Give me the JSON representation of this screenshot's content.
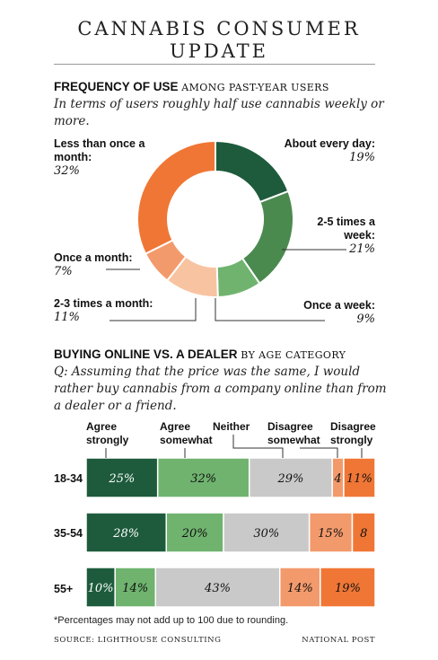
{
  "header": {
    "title_line1": "CANNABIS CONSUMER",
    "title_line2": "UPDATE"
  },
  "section1": {
    "title": "FREQUENCY OF USE",
    "subtitle": "AMONG PAST-YEAR USERS",
    "description": "In terms of users roughly half use cannabis weekly or more."
  },
  "section2": {
    "title": "BUYING ONLINE VS. A DEALER",
    "subtitle": "BY AGE CATEGORY",
    "question": "Q: Assuming that the price was the same, I would rather buy cannabis from a company online than from a dealer or a friend."
  },
  "footnote": "*Percentages may not add up to 100 due to rounding.",
  "source": "SOURCE: LIGHTHOUSE CONSULTING",
  "credit": "NATIONAL POST",
  "colors": {
    "dark_green": "#1d5b3c",
    "mid_green": "#4b8a4f",
    "light_green": "#6fb36f",
    "peach": "#f8c3a0",
    "light_orange": "#f39a6c",
    "orange": "#f07635",
    "grey": "#c9c9c9"
  },
  "chart_data": [
    {
      "type": "pie",
      "variant": "donut",
      "slices": [
        {
          "label": "About every day:",
          "value": 19,
          "value_label": "19%",
          "color": "#1d5b3c"
        },
        {
          "label": "2-5 times a week:",
          "value": 21,
          "value_label": "21%",
          "color": "#4b8a4f"
        },
        {
          "label": "Once a week:",
          "value": 9,
          "value_label": "9%",
          "color": "#6fb36f"
        },
        {
          "label": "2-3 times a month:",
          "value": 11,
          "value_label": "11%",
          "color": "#f8c3a0"
        },
        {
          "label": "Once a month:",
          "value": 7,
          "value_label": "7%",
          "color": "#f39a6c"
        },
        {
          "label": "Less than once a month:",
          "value": 32,
          "value_label": "32%",
          "color": "#f07635"
        }
      ]
    },
    {
      "type": "bar",
      "orientation": "horizontal",
      "stacked": true,
      "categories": [
        "18-34",
        "35-54",
        "55+"
      ],
      "series": [
        {
          "name": "Agree strongly",
          "values": [
            25,
            28,
            10
          ],
          "color": "#1d5b3c",
          "label_color": "#ffffff"
        },
        {
          "name": "Agree somewhat",
          "values": [
            32,
            20,
            14
          ],
          "color": "#6fb36f",
          "label_color": "#111111"
        },
        {
          "name": "Neither",
          "values": [
            29,
            30,
            43
          ],
          "color": "#c9c9c9",
          "label_color": "#111111"
        },
        {
          "name": "Disagree somewhat",
          "values": [
            4,
            15,
            14
          ],
          "color": "#f39a6c",
          "label_color": "#111111"
        },
        {
          "name": "Disagree strongly",
          "values": [
            11,
            8,
            19
          ],
          "color": "#f07635",
          "label_color": "#111111"
        }
      ],
      "data_labels": [
        [
          "25%",
          "32%",
          "29%",
          "4",
          "11%"
        ],
        [
          "28%",
          "20%",
          "30%",
          "15%",
          "8"
        ],
        [
          "10%",
          "14%",
          "43%",
          "14%",
          "19%"
        ]
      ]
    }
  ]
}
